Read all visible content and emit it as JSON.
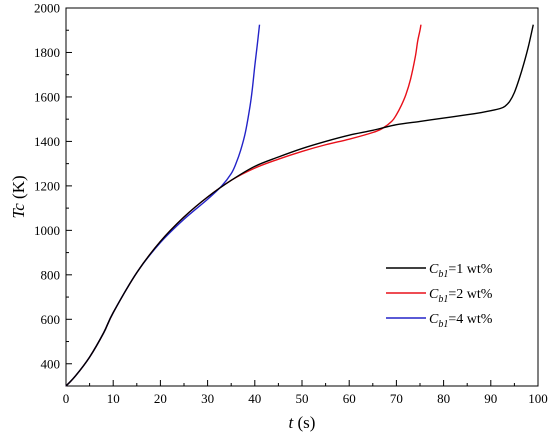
{
  "chart_data": {
    "type": "line",
    "xlabel": {
      "symbol": "t",
      "unit": " (s)"
    },
    "ylabel": {
      "symbol": "Tc",
      "unit": " (K)"
    },
    "xlim": [
      0,
      100
    ],
    "ylim": [
      300,
      2000
    ],
    "xticks": [
      0,
      10,
      20,
      30,
      40,
      50,
      60,
      70,
      80,
      90,
      100
    ],
    "yticks": [
      400,
      600,
      800,
      1000,
      1200,
      1400,
      1600,
      1800,
      2000
    ],
    "grid": false,
    "legend_position": "bottom-right",
    "series": [
      {
        "name": "Cb1=1 wt%",
        "legend": {
          "sym": "C",
          "sub": "b1",
          "rest": "=1 wt%"
        },
        "color": "#000000",
        "x": [
          0,
          2,
          5,
          8,
          10,
          15,
          20,
          25,
          30,
          35,
          40,
          45,
          50,
          55,
          60,
          65,
          70,
          75,
          80,
          85,
          88,
          90,
          92,
          93,
          94,
          95,
          96,
          97,
          98,
          99
        ],
        "y": [
          300,
          345,
          430,
          540,
          630,
          810,
          950,
          1060,
          1150,
          1225,
          1288,
          1330,
          1368,
          1400,
          1428,
          1450,
          1475,
          1490,
          1505,
          1520,
          1530,
          1538,
          1548,
          1558,
          1580,
          1620,
          1680,
          1750,
          1830,
          1925
        ]
      },
      {
        "name": "Cb1=2 wt%",
        "legend": {
          "sym": "C",
          "sub": "b1",
          "rest": "=2 wt%"
        },
        "color": "#e8101a",
        "x": [
          0,
          2,
          5,
          8,
          10,
          15,
          20,
          25,
          30,
          35,
          40,
          45,
          50,
          55,
          60,
          65,
          67,
          69,
          70,
          71,
          72,
          73,
          74,
          74.5,
          75,
          75.2
        ],
        "y": [
          300,
          345,
          430,
          540,
          630,
          810,
          950,
          1060,
          1150,
          1225,
          1280,
          1320,
          1355,
          1385,
          1410,
          1440,
          1458,
          1490,
          1520,
          1560,
          1610,
          1680,
          1780,
          1850,
          1900,
          1925
        ]
      },
      {
        "name": "Cb1=4 wt%",
        "legend": {
          "sym": "C",
          "sub": "b1",
          "rest": "=4 wt%"
        },
        "color": "#2323c8",
        "x": [
          0,
          2,
          5,
          8,
          10,
          15,
          20,
          25,
          30,
          33,
          35,
          36,
          37,
          38,
          39,
          39.5,
          40,
          40.5,
          41
        ],
        "y": [
          300,
          345,
          430,
          540,
          630,
          810,
          945,
          1050,
          1140,
          1200,
          1255,
          1300,
          1360,
          1440,
          1560,
          1640,
          1740,
          1830,
          1925
        ]
      }
    ]
  }
}
